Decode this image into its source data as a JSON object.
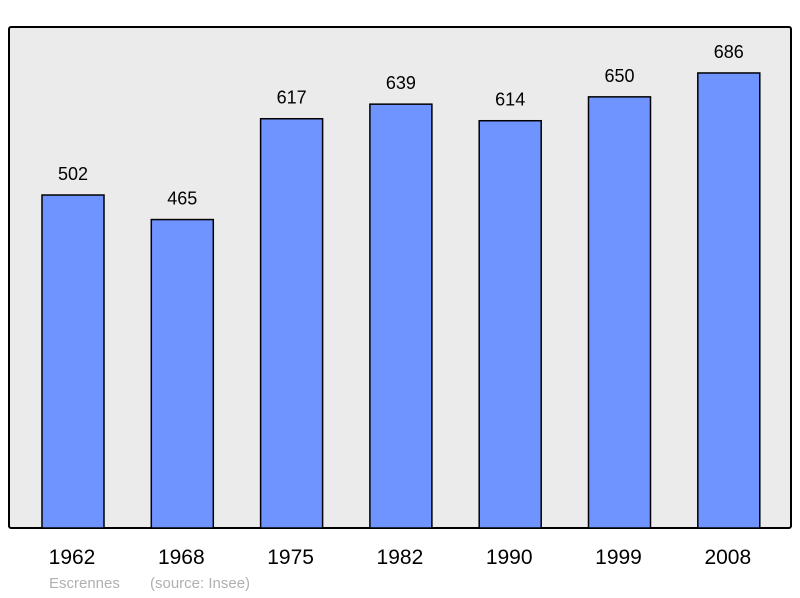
{
  "chart_data": {
    "type": "bar",
    "categories": [
      "1962",
      "1968",
      "1975",
      "1982",
      "1990",
      "1999",
      "2008"
    ],
    "values": [
      502,
      465,
      617,
      639,
      614,
      650,
      686
    ],
    "title": "",
    "xlabel": "",
    "ylabel": "",
    "grid": false,
    "bar_color": "#7094ff",
    "background_color": "#ebebeb"
  },
  "footer": {
    "place": "Escrennes",
    "source": "(source: Insee)"
  }
}
